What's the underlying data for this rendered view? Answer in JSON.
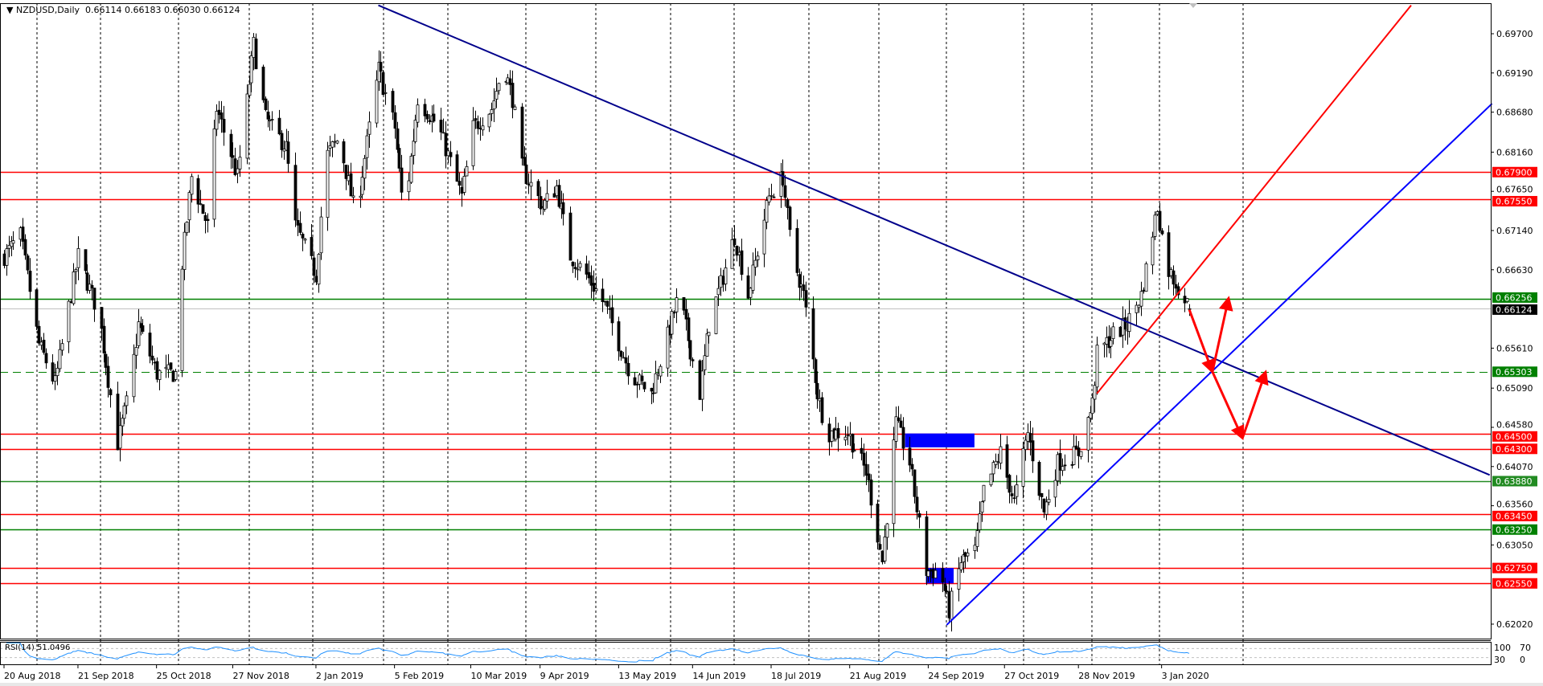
{
  "header": {
    "symbol": "NZDUSD,Daily",
    "open": "0.66114",
    "high": "0.66183",
    "low": "0.66030",
    "close": "0.66124"
  },
  "rsi": {
    "label": "RSI(14) 51.0496",
    "levels": [
      70,
      30
    ],
    "axis_labels": [
      "100",
      "70",
      "30",
      "0"
    ],
    "color": "#1e90ff"
  },
  "chart_data": {
    "type": "candlestick",
    "title": "NZDUSD,Daily",
    "price_ticks": [
      "0.69700",
      "0.69190",
      "0.68680",
      "0.68160",
      "0.67650",
      "0.67140",
      "0.66630",
      "0.65610",
      "0.65090",
      "0.64580",
      "0.64070",
      "0.63560",
      "0.63050",
      "0.62020"
    ],
    "date_labels": [
      "20 Aug 2018",
      "21 Sep 2018",
      "25 Oct 2018",
      "27 Nov 2018",
      "2 Jan 2019",
      "5 Feb 2019",
      "10 Mar 2019",
      "9 Apr 2019",
      "13 May 2019",
      "14 Jun 2019",
      "18 Jul 2019",
      "21 Aug 2019",
      "24 Sep 2019",
      "27 Oct 2019",
      "28 Nov 2019",
      "3 Jan 2020"
    ],
    "ylim": [
      0.616,
      0.701
    ],
    "grid": true,
    "approx_close_path": [
      [
        "2018-08-20",
        0.6681
      ],
      [
        "2018-08-27",
        0.6707
      ],
      [
        "2018-09-04",
        0.6566
      ],
      [
        "2018-09-11",
        0.6515
      ],
      [
        "2018-09-21",
        0.6681
      ],
      [
        "2018-09-30",
        0.6604
      ],
      [
        "2018-10-08",
        0.6438
      ],
      [
        "2018-10-13",
        0.6502
      ],
      [
        "2018-10-17",
        0.6592
      ],
      [
        "2018-10-25",
        0.6528
      ],
      [
        "2018-11-02",
        0.6528
      ],
      [
        "2018-11-04",
        0.6643
      ],
      [
        "2018-11-09",
        0.6784
      ],
      [
        "2018-11-16",
        0.672
      ],
      [
        "2018-11-20",
        0.6873
      ],
      [
        "2018-11-29",
        0.6784
      ],
      [
        "2018-12-06",
        0.6956
      ],
      [
        "2018-12-11",
        0.686
      ],
      [
        "2018-12-20",
        0.6822
      ],
      [
        "2018-12-24",
        0.672
      ],
      [
        "2019-01-02",
        0.6656
      ],
      [
        "2019-01-06",
        0.6809
      ],
      [
        "2019-01-12",
        0.6835
      ],
      [
        "2019-01-19",
        0.6732
      ],
      [
        "2019-01-29",
        0.6924
      ],
      [
        "2019-02-05",
        0.6848
      ],
      [
        "2019-02-09",
        0.6732
      ],
      [
        "2019-02-15",
        0.6886
      ],
      [
        "2019-02-24",
        0.6848
      ],
      [
        "2019-03-06",
        0.6758
      ],
      [
        "2019-03-11",
        0.6848
      ],
      [
        "2019-03-19",
        0.6873
      ],
      [
        "2019-03-24",
        0.6931
      ],
      [
        "2019-03-28",
        0.6886
      ],
      [
        "2019-04-01",
        0.6796
      ],
      [
        "2019-04-10",
        0.6745
      ],
      [
        "2019-04-16",
        0.6771
      ],
      [
        "2019-04-22",
        0.6681
      ],
      [
        "2019-04-29",
        0.6656
      ],
      [
        "2019-05-07",
        0.6617
      ],
      [
        "2019-05-18",
        0.6528
      ],
      [
        "2019-05-27",
        0.6502
      ],
      [
        "2019-06-08",
        0.663
      ],
      [
        "2019-06-17",
        0.6502
      ],
      [
        "2019-06-21",
        0.6592
      ],
      [
        "2019-07-02",
        0.6707
      ],
      [
        "2019-07-08",
        0.663
      ],
      [
        "2019-07-17",
        0.6758
      ],
      [
        "2019-07-23",
        0.6784
      ],
      [
        "2019-07-27",
        0.6681
      ],
      [
        "2019-08-01",
        0.663
      ],
      [
        "2019-08-07",
        0.6502
      ],
      [
        "2019-08-11",
        0.6451
      ],
      [
        "2019-08-20",
        0.6451
      ],
      [
        "2019-08-28",
        0.64
      ],
      [
        "2019-09-04",
        0.6284
      ],
      [
        "2019-09-10",
        0.6463
      ],
      [
        "2019-09-16",
        0.6412
      ],
      [
        "2019-09-23",
        0.6271
      ],
      [
        "2019-09-29",
        0.6271
      ],
      [
        "2019-10-03",
        0.622
      ],
      [
        "2019-10-08",
        0.6284
      ],
      [
        "2019-10-14",
        0.6297
      ],
      [
        "2019-10-18",
        0.6374
      ],
      [
        "2019-10-25",
        0.6425
      ],
      [
        "2019-10-31",
        0.6361
      ],
      [
        "2019-11-06",
        0.6451
      ],
      [
        "2019-11-13",
        0.6348
      ],
      [
        "2019-11-19",
        0.6412
      ],
      [
        "2019-11-28",
        0.6425
      ],
      [
        "2019-12-04",
        0.6489
      ],
      [
        "2019-12-06",
        0.6553
      ],
      [
        "2019-12-13",
        0.6579
      ],
      [
        "2019-12-19",
        0.6592
      ],
      [
        "2019-12-25",
        0.663
      ],
      [
        "2020-01-01",
        0.6745
      ],
      [
        "2020-01-05",
        0.6668
      ],
      [
        "2020-01-12",
        0.663
      ],
      [
        "2020-01-15",
        0.66124
      ]
    ],
    "levels": [
      {
        "price": 0.679,
        "label": "0.67900",
        "color": "#ff0000"
      },
      {
        "price": 0.6755,
        "label": "0.67550",
        "color": "#ff0000"
      },
      {
        "price": 0.66256,
        "label": "0.66256",
        "color": "#008000"
      },
      {
        "price": 0.65303,
        "label": "0.65303",
        "color": "#008000",
        "dashed": true
      },
      {
        "price": 0.645,
        "label": "0.64500",
        "color": "#ff0000"
      },
      {
        "price": 0.643,
        "label": "0.64300",
        "color": "#ff0000"
      },
      {
        "price": 0.6388,
        "label": "0.63880",
        "color": "#228b22"
      },
      {
        "price": 0.6345,
        "label": "0.63450",
        "color": "#ff0000"
      },
      {
        "price": 0.6325,
        "label": "0.63250",
        "color": "#008000"
      },
      {
        "price": 0.6275,
        "label": "0.62750",
        "color": "#ff0000"
      },
      {
        "price": 0.6255,
        "label": "0.62550",
        "color": "#ff0000"
      }
    ],
    "current_price": {
      "price": 0.66124,
      "label": "0.66124"
    },
    "trendlines": [
      {
        "from": [
          "2019-01-29",
          0.7007
        ],
        "to": [
          "2020-05-24",
          0.6396
        ],
        "color": "#00008b"
      },
      {
        "from": [
          "2019-12-06",
          0.6502
        ],
        "to": [
          "2020-04-20",
          0.7007
        ],
        "color": "#ff0000"
      },
      {
        "from": [
          "2019-10-02",
          0.6201
        ],
        "to": [
          "2020-05-25",
          0.6879
        ],
        "color": "#0000ff"
      }
    ],
    "rectangles": [
      {
        "from": [
          "2019-09-14",
          0.645
        ],
        "to": [
          "2019-10-14",
          0.6432
        ],
        "color": "#0000ff"
      },
      {
        "from": [
          "2019-09-23",
          0.6275
        ],
        "to": [
          "2019-10-05",
          0.6255
        ],
        "color": "#0000ff"
      }
    ],
    "arrows": [
      {
        "from": [
          "2020-01-15",
          0.6611
        ],
        "to": [
          "2020-01-25",
          0.65303
        ]
      },
      {
        "from": [
          "2020-01-25",
          0.65303
        ],
        "to": [
          "2020-02-01",
          0.6626
        ]
      },
      {
        "from": [
          "2020-01-25",
          0.65303
        ],
        "to": [
          "2020-02-07",
          0.6444
        ]
      },
      {
        "from": [
          "2020-02-07",
          0.6444
        ],
        "to": [
          "2020-02-17",
          0.653
        ]
      }
    ],
    "arrow_color": "#ff0000"
  }
}
